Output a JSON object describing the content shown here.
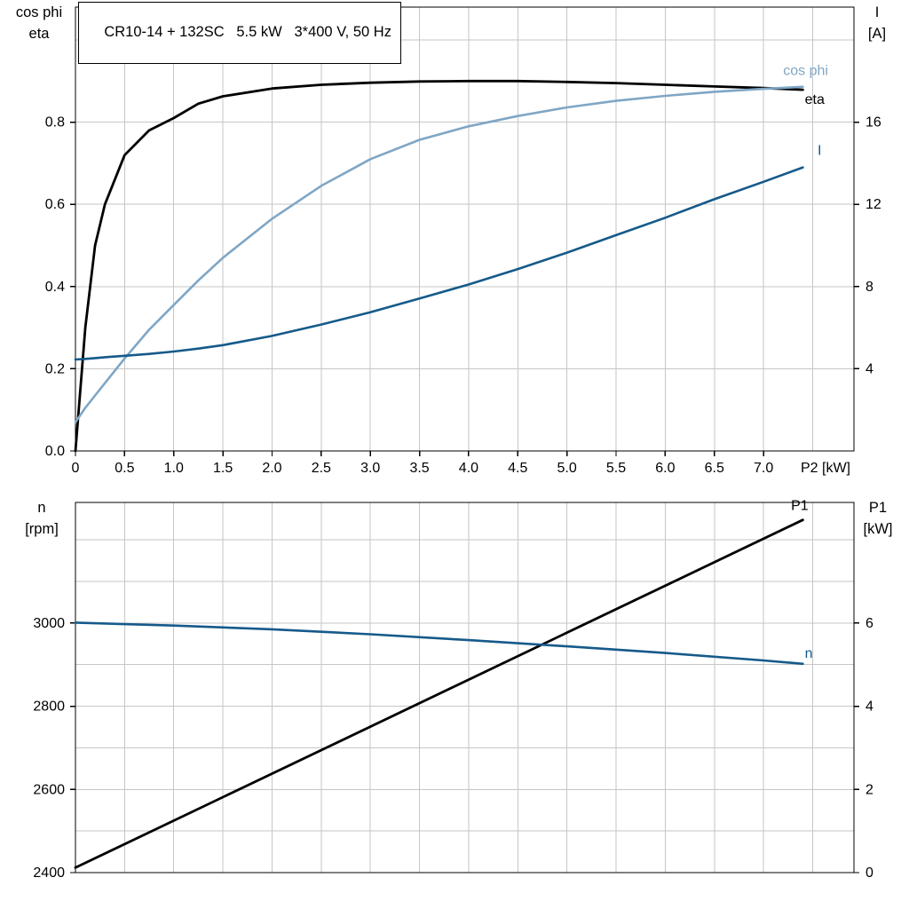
{
  "title": "CR10-14 + 132SC   5.5 kW   3*400 V, 50 Hz",
  "corner_labels": {
    "top_left": [
      "cos phi",
      "eta"
    ],
    "top_right": [
      "I",
      "[A]"
    ],
    "bottom_left": [
      "n",
      "[rpm]"
    ],
    "bottom_right": [
      "P1",
      "[kW]"
    ]
  },
  "colors": {
    "eta": "#000000",
    "cos_phi": "#7fa6c5",
    "current": "#155a8a",
    "speed": "#155a8a",
    "input_power": "#000000",
    "grid": "#c6c6c6",
    "axis": "#000000",
    "background": "#ffffff"
  },
  "chart_data": [
    {
      "id": "power-factor-efficiency-current",
      "type": "line",
      "title": "CR10-14 + 132SC   5.5 kW   3*400 V, 50 Hz",
      "xlabel": "P2 [kW]",
      "x_range": [
        0,
        7.92
      ],
      "x_grid_step": 0.5,
      "x_ticks": [
        [
          0,
          "0"
        ],
        [
          0.5,
          "0.5"
        ],
        [
          1,
          "1.0"
        ],
        [
          1.5,
          "1.5"
        ],
        [
          2,
          "2.0"
        ],
        [
          2.5,
          "2.5"
        ],
        [
          3,
          "3.0"
        ],
        [
          3.5,
          "3.5"
        ],
        [
          4,
          "4.0"
        ],
        [
          4.5,
          "4.5"
        ],
        [
          5,
          "5.0"
        ],
        [
          5.5,
          "5.5"
        ],
        [
          6,
          "6.0"
        ],
        [
          6.5,
          "6.5"
        ],
        [
          7,
          "7.0"
        ]
      ],
      "grid": true,
      "y_left": {
        "label": "cos phi / eta",
        "range": [
          0,
          1.08
        ],
        "grid_step": 0.2,
        "ticks": [
          [
            0,
            "0.0"
          ],
          [
            0.2,
            "0.2"
          ],
          [
            0.4,
            "0.4"
          ],
          [
            0.6,
            "0.6"
          ],
          [
            0.8,
            "0.8"
          ]
        ]
      },
      "y_right": {
        "label": "I [A]",
        "range": [
          0,
          21.6
        ],
        "ticks": [
          [
            4,
            "4"
          ],
          [
            8,
            "8"
          ],
          [
            12,
            "12"
          ],
          [
            16,
            "16"
          ]
        ]
      },
      "series": [
        {
          "name": "eta",
          "axis": "left",
          "color": "#000000",
          "width": 2.8,
          "label_at": [
            7.42,
            0.845
          ],
          "x": [
            0,
            0.1,
            0.2,
            0.3,
            0.5,
            0.75,
            1.0,
            1.25,
            1.5,
            2.0,
            2.5,
            3.0,
            3.5,
            4.0,
            4.5,
            5.0,
            5.5,
            6.0,
            6.5,
            7.0,
            7.4
          ],
          "y": [
            0,
            0.3,
            0.5,
            0.6,
            0.72,
            0.78,
            0.81,
            0.845,
            0.863,
            0.882,
            0.891,
            0.896,
            0.899,
            0.9,
            0.9,
            0.898,
            0.895,
            0.891,
            0.887,
            0.883,
            0.879
          ]
        },
        {
          "name": "cos phi",
          "axis": "left",
          "color": "#7fa6c5",
          "width": 2.6,
          "label_at": [
            7.2,
            0.915
          ],
          "x": [
            0,
            0.1,
            0.2,
            0.3,
            0.5,
            0.75,
            1.0,
            1.25,
            1.5,
            2.0,
            2.5,
            3.0,
            3.5,
            4.0,
            4.5,
            5.0,
            5.5,
            6.0,
            6.5,
            7.0,
            7.4
          ],
          "y": [
            0.07,
            0.105,
            0.135,
            0.165,
            0.225,
            0.295,
            0.355,
            0.415,
            0.47,
            0.565,
            0.645,
            0.71,
            0.757,
            0.79,
            0.815,
            0.836,
            0.852,
            0.864,
            0.874,
            0.881,
            0.886
          ]
        },
        {
          "name": "I",
          "axis": "right",
          "color": "#155a8a",
          "width": 2.6,
          "label_at": [
            7.55,
            14.4
          ],
          "x": [
            0,
            0.1,
            0.2,
            0.3,
            0.5,
            0.75,
            1.0,
            1.25,
            1.5,
            2.0,
            2.5,
            3.0,
            3.5,
            4.0,
            4.5,
            5.0,
            5.5,
            6.0,
            6.5,
            7.0,
            7.4
          ],
          "y": [
            4.45,
            4.48,
            4.52,
            4.56,
            4.63,
            4.72,
            4.84,
            4.98,
            5.15,
            5.6,
            6.15,
            6.75,
            7.42,
            8.1,
            8.85,
            9.65,
            10.5,
            11.35,
            12.25,
            13.1,
            13.8
          ]
        }
      ]
    },
    {
      "id": "speed-input-power",
      "type": "line",
      "xlabel": "",
      "x_range": [
        0,
        7.92
      ],
      "x_grid_step": 0.5,
      "x_ticks": [],
      "grid": true,
      "y_left": {
        "label": "n [rpm]",
        "range": [
          2400,
          3290
        ],
        "grid_step": 100,
        "ticks": [
          [
            2400,
            "2400"
          ],
          [
            2600,
            "2600"
          ],
          [
            2800,
            "2800"
          ],
          [
            3000,
            "3000"
          ]
        ]
      },
      "y_right": {
        "label": "P1 [kW]",
        "range": [
          0,
          8.9
        ],
        "ticks": [
          [
            0,
            "0"
          ],
          [
            2,
            "2"
          ],
          [
            4,
            "4"
          ],
          [
            6,
            "6"
          ]
        ]
      },
      "series": [
        {
          "name": "P1",
          "axis": "right",
          "color": "#000000",
          "width": 2.8,
          "label_at": [
            7.28,
            8.72
          ],
          "x": [
            0,
            7.4
          ],
          "y": [
            0.12,
            8.48
          ]
        },
        {
          "name": "n",
          "axis": "left",
          "color": "#155a8a",
          "width": 2.6,
          "label_at": [
            7.42,
            2916
          ],
          "x": [
            0,
            1,
            2,
            3,
            4,
            5,
            6,
            7,
            7.4
          ],
          "y": [
            3001,
            2994,
            2985,
            2973,
            2959,
            2944,
            2928,
            2910,
            2902
          ]
        }
      ]
    }
  ]
}
